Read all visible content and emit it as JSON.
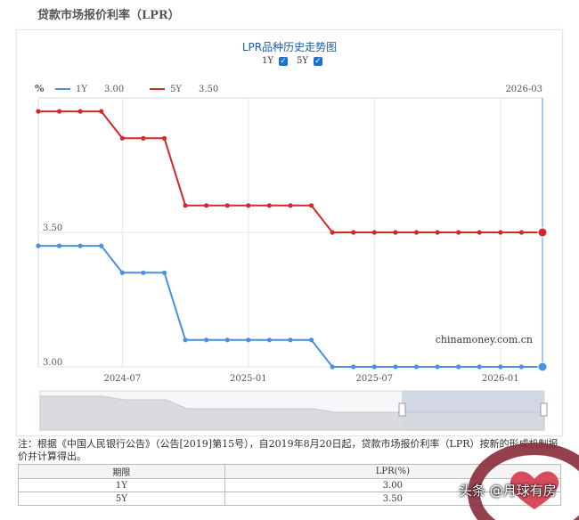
{
  "page": {
    "title": "贷款市场报价利率（LPR）",
    "chart_title": "LPR品种历史走势图",
    "toggles": [
      {
        "label": "1Y",
        "checked": true
      },
      {
        "label": "5Y",
        "checked": true
      }
    ],
    "watermark_site": "chinamoney.com.cn",
    "note": "注：根据《中国人民银行公告》（公告[2019]第15号），自2019年8月20日起，贷款市场报价利率（LPR）按新的形成机制报价并计算得出。",
    "table": {
      "headers": [
        "期限",
        "LPR(%)"
      ],
      "rows": [
        [
          "1Y",
          "3.00"
        ],
        [
          "5Y",
          "3.50"
        ]
      ]
    },
    "social_watermark": "头条 @月球有房"
  },
  "chart_data": {
    "type": "line",
    "ylabel": "%",
    "x_ticks": [
      "2024-07",
      "2025-01",
      "2025-07",
      "2026-01"
    ],
    "x_top_label": "2026-03",
    "y_ticks": [
      "3.50",
      "3.00"
    ],
    "tooltip": {
      "1Y": "3.00",
      "5Y": "3.50"
    },
    "colors": {
      "1Y": "#4a90e2",
      "5Y": "#d62728"
    },
    "x": [
      "2024-03",
      "2024-04",
      "2024-05",
      "2024-06",
      "2024-07",
      "2024-08",
      "2024-09",
      "2024-10",
      "2024-11",
      "2024-12",
      "2025-01",
      "2025-02",
      "2025-03",
      "2025-04",
      "2025-05",
      "2025-06",
      "2025-07",
      "2025-08",
      "2025-09",
      "2025-10",
      "2025-11",
      "2025-12",
      "2026-01",
      "2026-02",
      "2026-03"
    ],
    "series": [
      {
        "name": "1Y",
        "values": [
          3.45,
          3.45,
          3.45,
          3.45,
          3.35,
          3.35,
          3.35,
          3.1,
          3.1,
          3.1,
          3.1,
          3.1,
          3.1,
          3.1,
          3.0,
          3.0,
          3.0,
          3.0,
          3.0,
          3.0,
          3.0,
          3.0,
          3.0,
          3.0,
          3.0
        ]
      },
      {
        "name": "5Y",
        "values": [
          3.95,
          3.95,
          3.95,
          3.95,
          3.85,
          3.85,
          3.85,
          3.6,
          3.6,
          3.6,
          3.6,
          3.6,
          3.6,
          3.6,
          3.5,
          3.5,
          3.5,
          3.5,
          3.5,
          3.5,
          3.5,
          3.5,
          3.5,
          3.5,
          3.5
        ]
      }
    ]
  }
}
